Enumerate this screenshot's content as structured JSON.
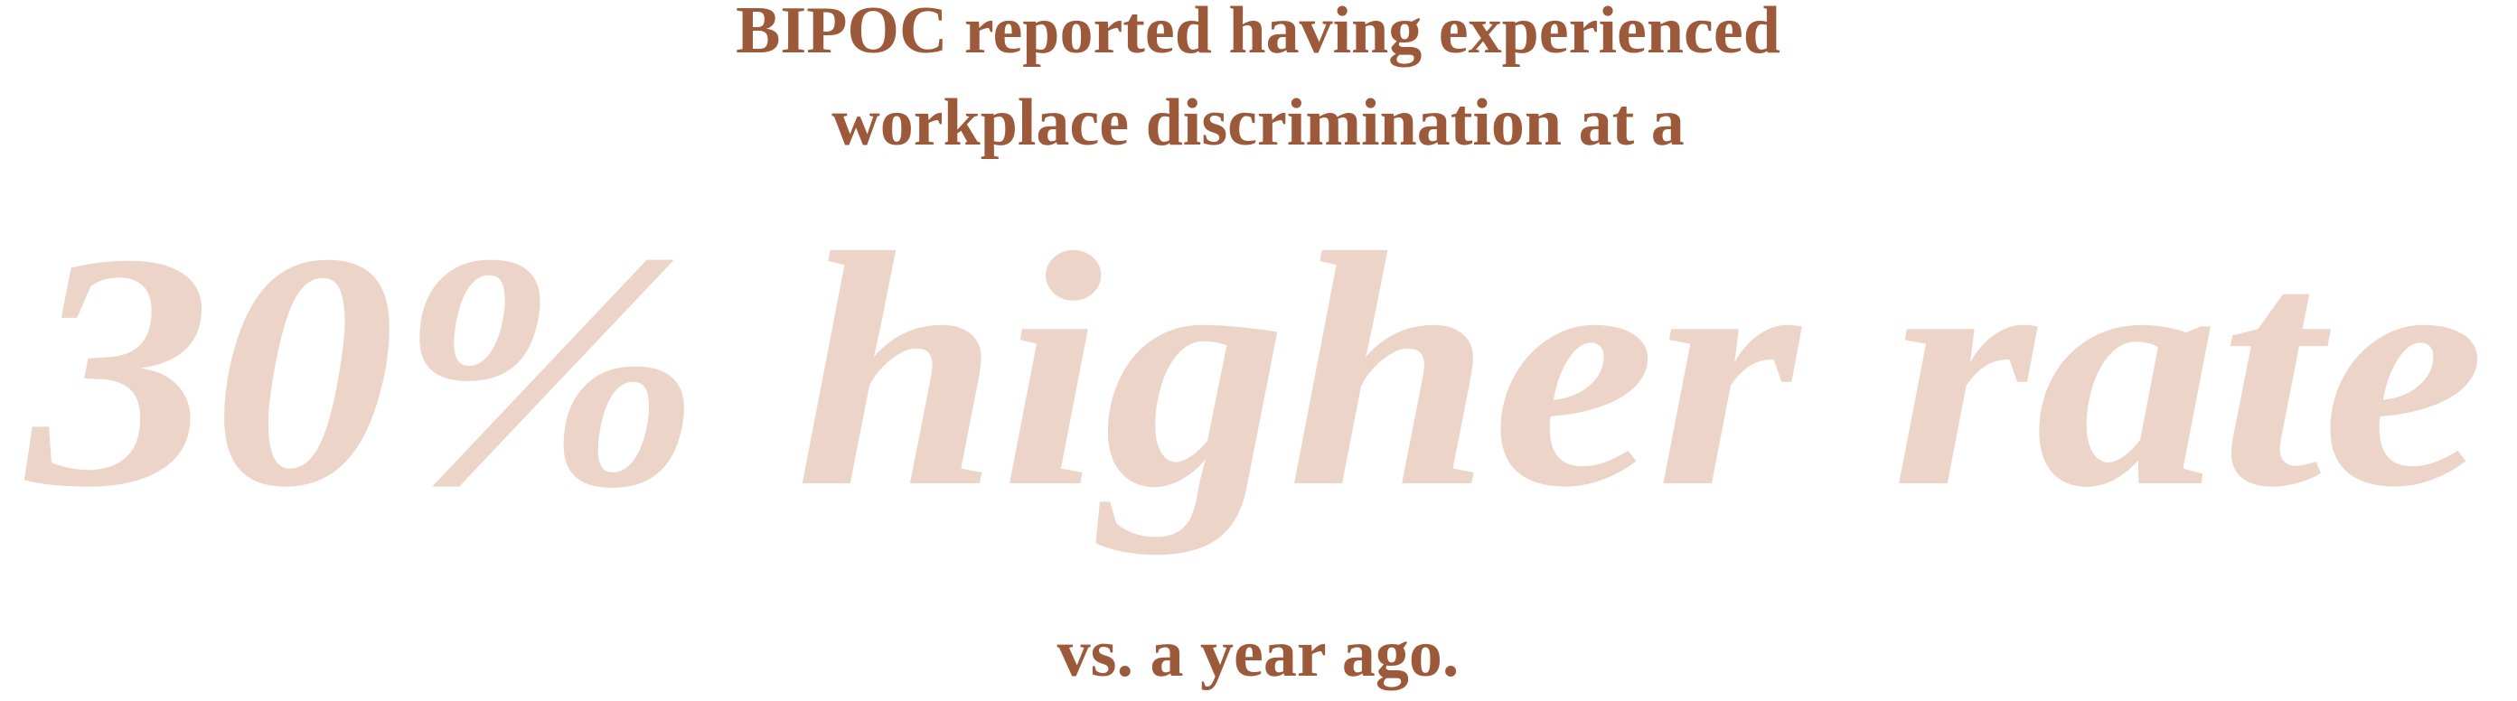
{
  "heading": {
    "lines": [
      "BIPOC reported having experienced",
      "workplace discrimination at a"
    ]
  },
  "highlight": "30% higher rate",
  "footer": "vs. a year ago."
}
